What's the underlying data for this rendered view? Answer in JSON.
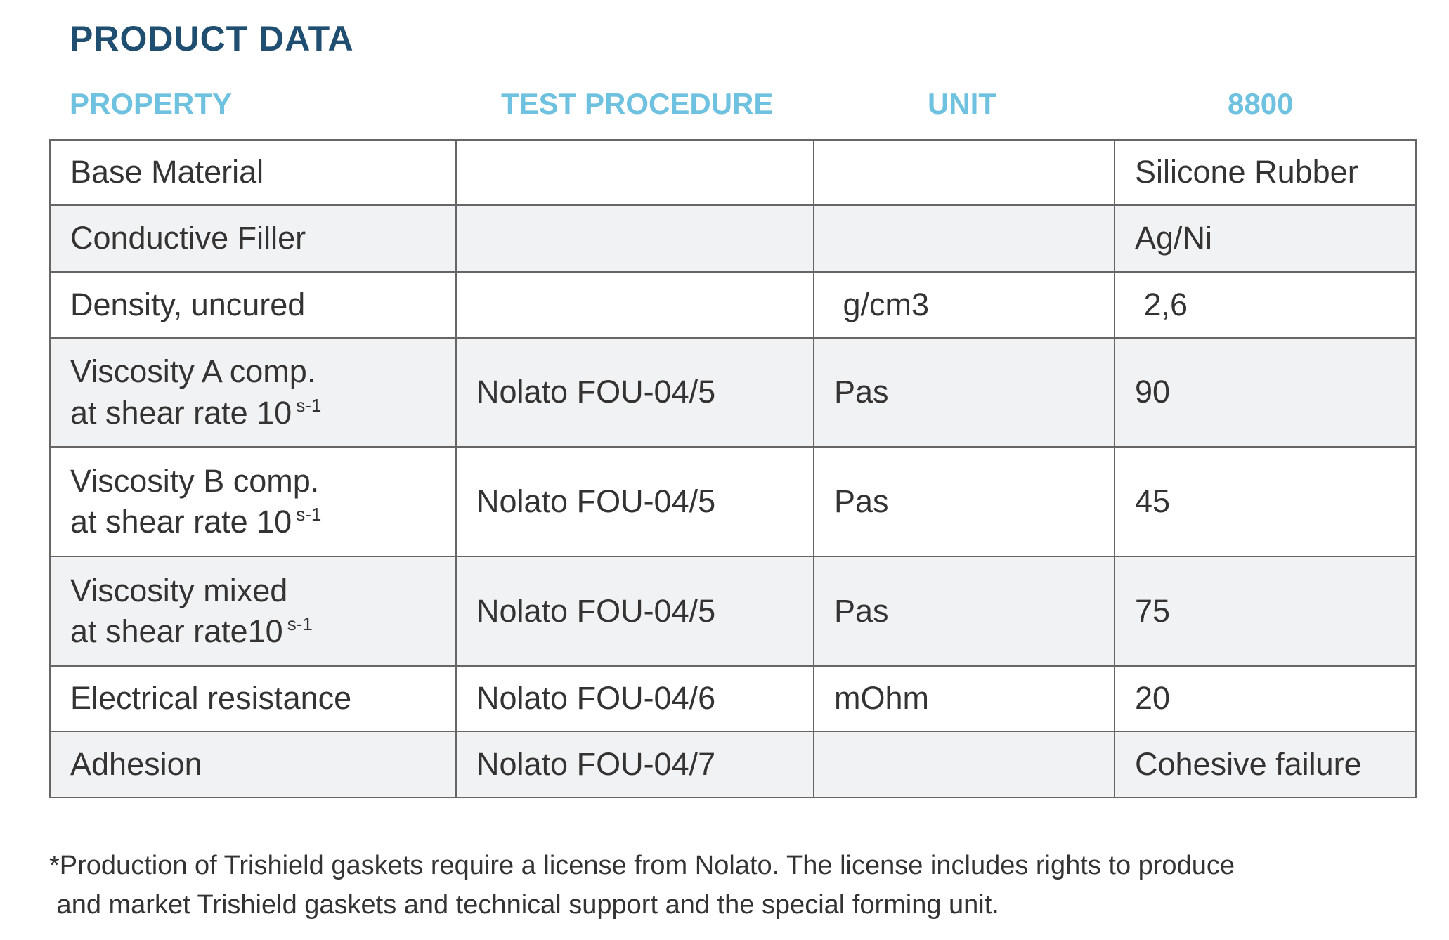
{
  "title": "PRODUCT DATA",
  "headers": {
    "property": "PROPERTY",
    "test_procedure": "TEST PROCEDURE",
    "unit": "UNIT",
    "product": "8800"
  },
  "rows": [
    {
      "property": "Base Material",
      "test": "",
      "unit": "",
      "value": "Silicone Rubber"
    },
    {
      "property": "Conductive Filler",
      "test": "",
      "unit": "",
      "value": "Ag/Ni"
    },
    {
      "property": "Density, uncured",
      "test": "",
      "unit": " g/cm3",
      "value": " 2,6"
    },
    {
      "property": "Viscosity A comp.",
      "property_line2": "at shear rate 10",
      "sup": "s-1",
      "test": "Nolato FOU-04/5",
      "unit": "Pas",
      "value": "90"
    },
    {
      "property": "Viscosity B comp.",
      "property_line2": "at shear rate 10",
      "sup": "s-1",
      "test": "Nolato FOU-04/5",
      "unit": "Pas",
      "value": "45"
    },
    {
      "property": "Viscosity mixed",
      "property_line2": "at shear rate10",
      "sup": "s-1",
      "test": "Nolato FOU-04/5",
      "unit": "Pas",
      "value": "75"
    },
    {
      "property": "Electrical resistance",
      "test": "Nolato FOU-04/6",
      "unit": "mOhm",
      "value": "20"
    },
    {
      "property": "Adhesion",
      "test": "Nolato FOU-04/7",
      "unit": "",
      "value": "Cohesive failure"
    }
  ],
  "footnote": {
    "line1": "*Production of Trishield gaskets require a license from Nolato. The license includes rights to produce",
    "line2": " and market Trishield gaskets and technical support and the special forming unit."
  },
  "colors": {
    "title": "#1f4e70",
    "header": "#6ec1df",
    "alt_row": "#f1f2f3",
    "border": "#666666"
  }
}
